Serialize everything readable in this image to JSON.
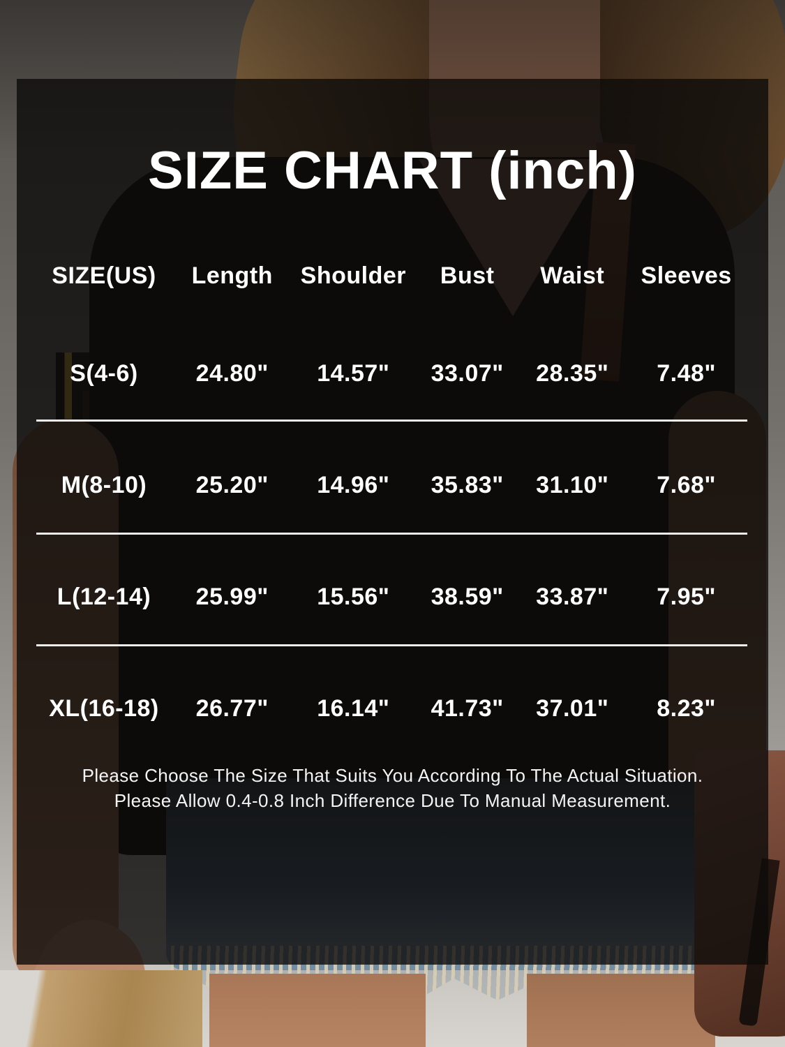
{
  "title": "SIZE CHART (inch)",
  "unit": "inch",
  "chart_data": {
    "type": "table",
    "title": "SIZE CHART (inch)",
    "columns": [
      "SIZE(US)",
      "Length",
      "Shoulder",
      "Bust",
      "Waist",
      "Sleeves"
    ],
    "rows": [
      [
        "S(4-6)",
        "24.80\"",
        "14.57\"",
        "33.07\"",
        "28.35\"",
        "7.48\""
      ],
      [
        "M(8-10)",
        "25.20\"",
        "14.96\"",
        "35.83\"",
        "31.10\"",
        "7.68\""
      ],
      [
        "L(12-14)",
        "25.99\"",
        "15.56\"",
        "38.59\"",
        "33.87\"",
        "7.95\""
      ],
      [
        "XL(16-18)",
        "26.77\"",
        "16.14\"",
        "41.73\"",
        "37.01\"",
        "8.23\""
      ]
    ]
  },
  "note": {
    "line1": "Please Choose The Size That Suits You According To The Actual Situation.",
    "line2": "Please Allow 0.4-0.8 Inch Difference Due To Manual Measurement."
  },
  "colors": {
    "text": "#ffffff",
    "separator": "#ececec",
    "overlay_panel": "#0d0b0a",
    "denim": "#46607a",
    "bag_leather": "#6b4030"
  }
}
